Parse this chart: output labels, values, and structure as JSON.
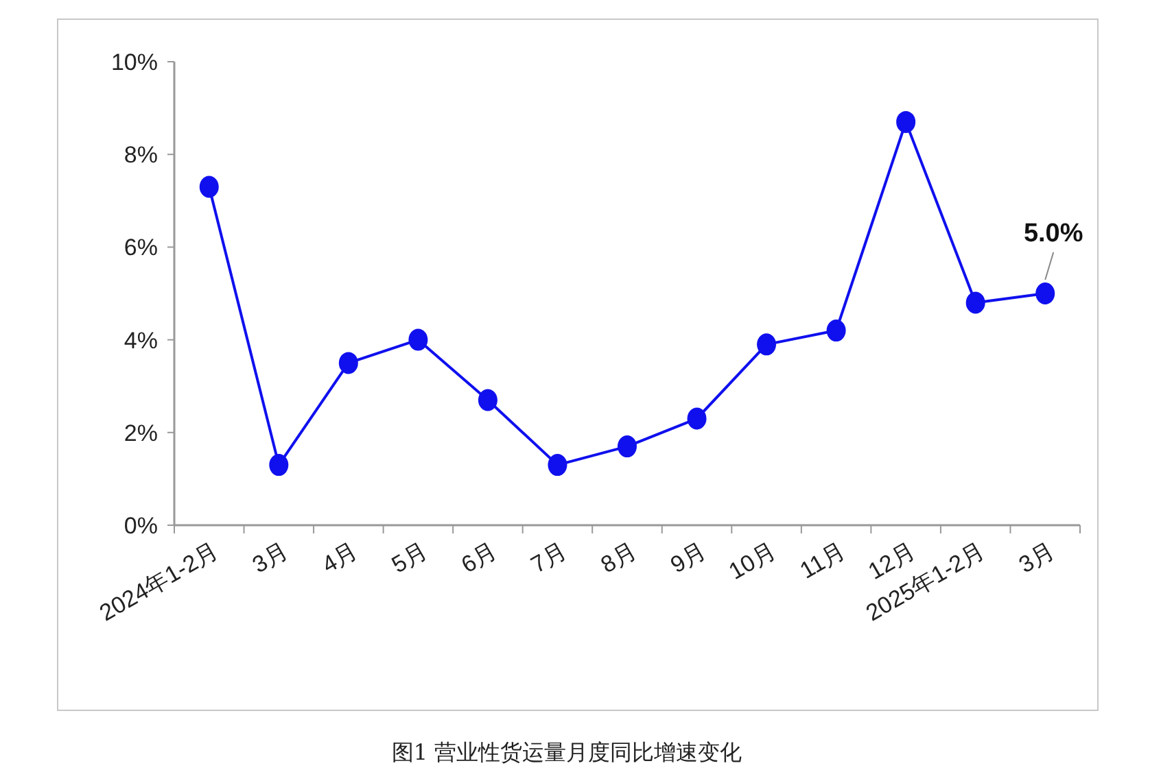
{
  "chart_data": {
    "type": "line",
    "title": "图1  营业性货运量月度同比增速变化",
    "categories": [
      "2024年1-2月",
      "3月",
      "4月",
      "5月",
      "6月",
      "7月",
      "8月",
      "9月",
      "10月",
      "11月",
      "12月",
      "2025年1-2月",
      "3月"
    ],
    "series": [
      {
        "color": "#1010ee",
        "values": [
          7.3,
          1.3,
          3.5,
          4.0,
          2.7,
          1.3,
          1.7,
          2.3,
          3.9,
          4.2,
          8.7,
          4.8,
          5.0
        ]
      }
    ],
    "ylim": [
      0,
      10
    ],
    "yticks": [
      {
        "value": 0,
        "label": "0%"
      },
      {
        "value": 2,
        "label": "2%"
      },
      {
        "value": 4,
        "label": "4%"
      },
      {
        "value": 6,
        "label": "6%"
      },
      {
        "value": 8,
        "label": "8%"
      },
      {
        "value": 10,
        "label": "10%"
      }
    ],
    "annotations": [
      "5.0%"
    ],
    "marker": "circle",
    "line_style": "solid",
    "grid": false
  }
}
